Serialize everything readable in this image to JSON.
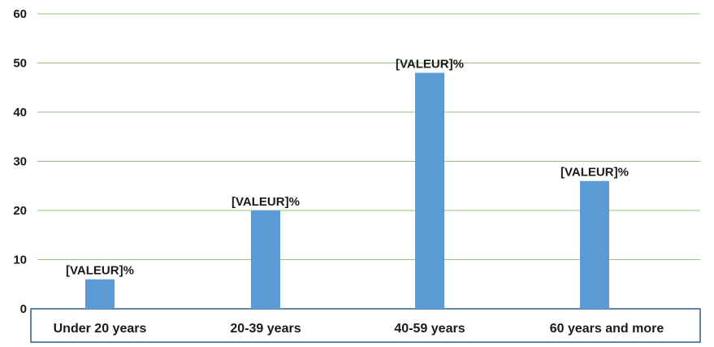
{
  "chart_data": {
    "type": "bar",
    "categories": [
      "Under 20 years",
      "20-39 years",
      "40-59 years",
      "60 years and more"
    ],
    "values": [
      6,
      20,
      48,
      26
    ],
    "data_labels": [
      "[VALEUR]%",
      "[VALEUR]%",
      "[VALEUR]%",
      "[VALEUR]%"
    ],
    "title": "",
    "xlabel": "",
    "ylabel": "",
    "ylim": [
      0,
      60
    ],
    "yticks": [
      0,
      10,
      20,
      30,
      40,
      50,
      60
    ],
    "grid": true,
    "legend": "none",
    "colors": {
      "bar": "#5b9bd5",
      "grid": "#92c47d",
      "axis_box": "#2e5f8a"
    }
  }
}
